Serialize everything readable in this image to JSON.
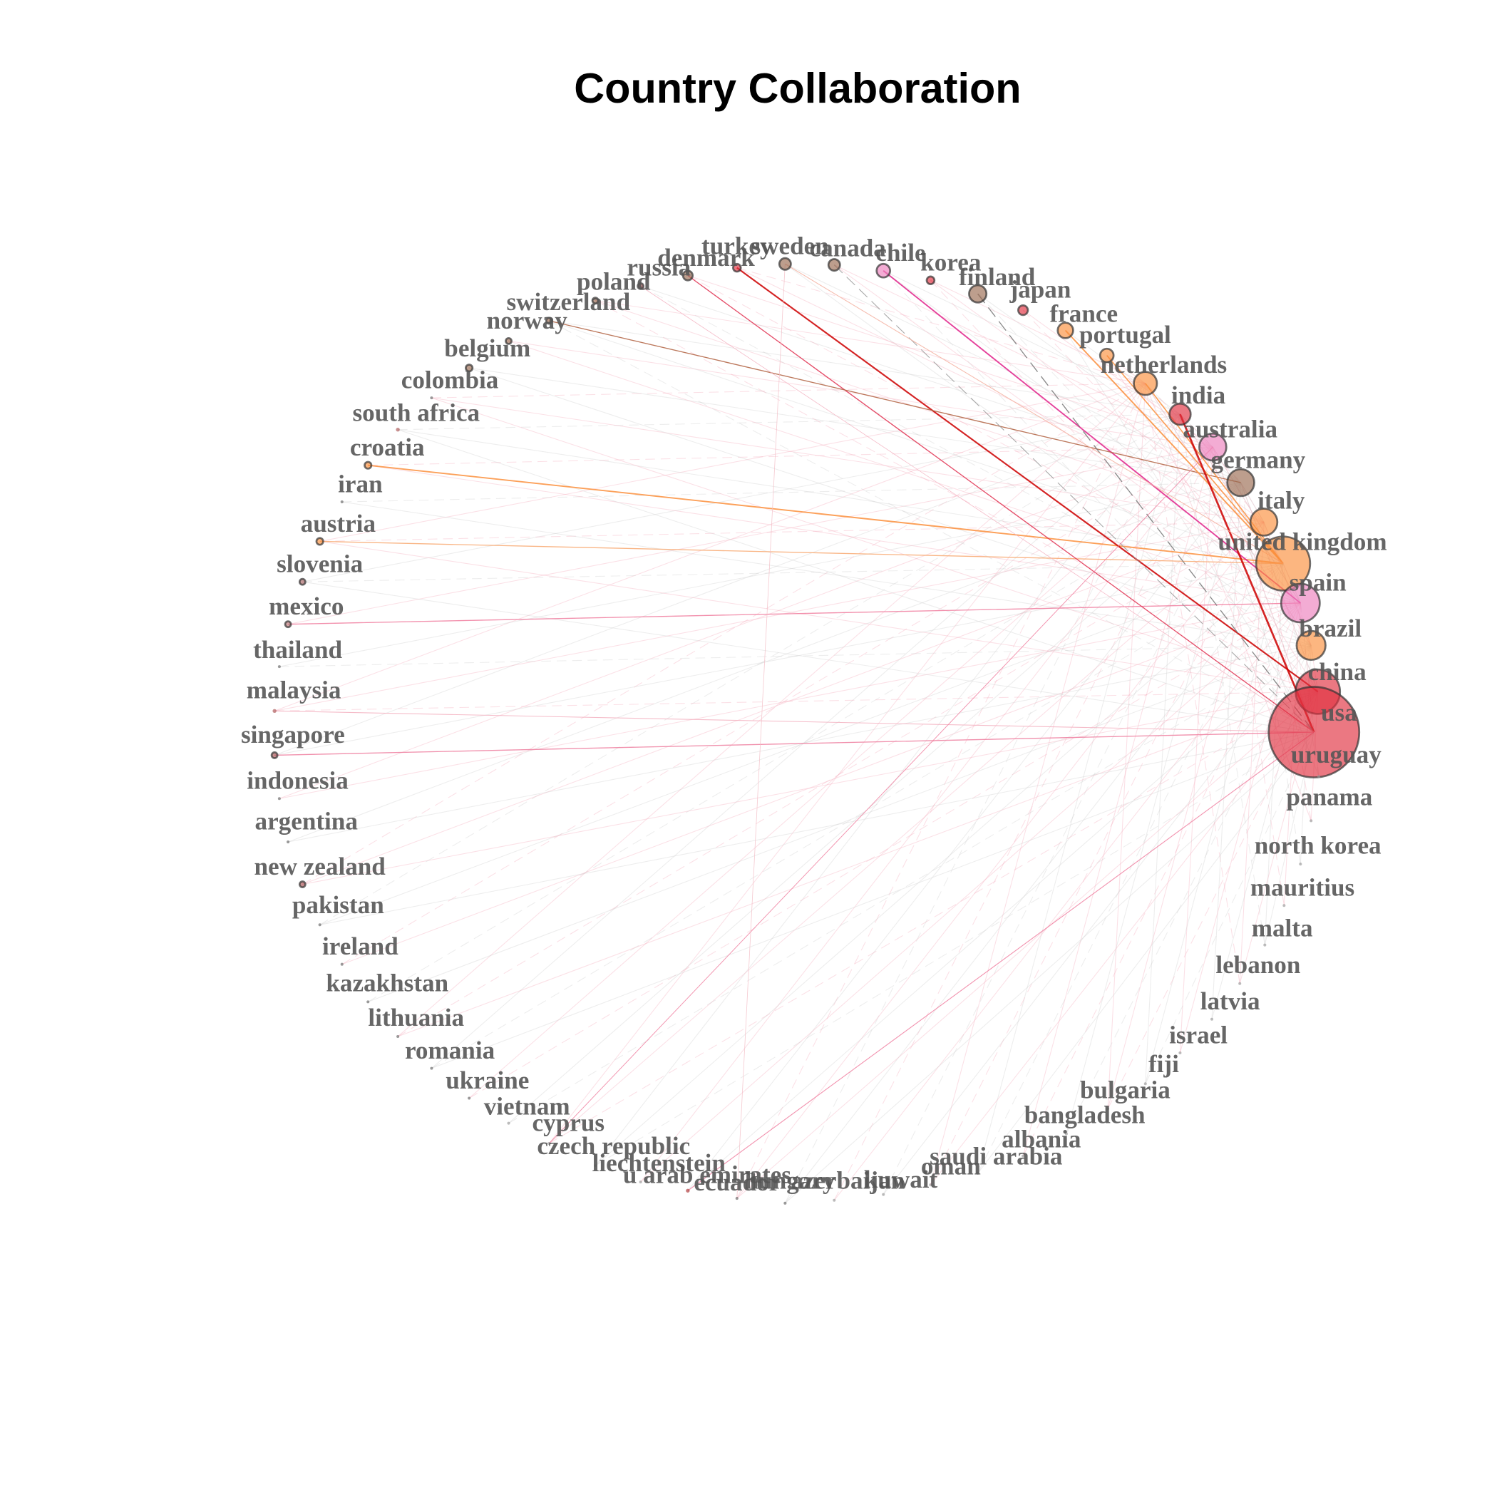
{
  "title": "Country Collaboration",
  "nodes": [
    {
      "label": "turkey"
    },
    {
      "label": "sweden"
    },
    {
      "label": "canada"
    },
    {
      "label": "chile"
    },
    {
      "label": "korea"
    },
    {
      "label": "finland"
    },
    {
      "label": "japan"
    },
    {
      "label": "france"
    },
    {
      "label": "portugal"
    },
    {
      "label": "netherlands"
    },
    {
      "label": "india"
    },
    {
      "label": "australia"
    },
    {
      "label": "germany"
    },
    {
      "label": "italy"
    },
    {
      "label": "united kingdom"
    },
    {
      "label": "spain"
    },
    {
      "label": "brazil"
    },
    {
      "label": "china"
    },
    {
      "label": "usa"
    },
    {
      "label": "uruguay"
    },
    {
      "label": "panama"
    },
    {
      "label": "north korea"
    },
    {
      "label": "mauritius"
    },
    {
      "label": "malta"
    },
    {
      "label": "lebanon"
    },
    {
      "label": "latvia"
    },
    {
      "label": "israel"
    },
    {
      "label": "fiji"
    },
    {
      "label": "bulgaria"
    },
    {
      "label": "bangladesh"
    },
    {
      "label": "albania"
    },
    {
      "label": "saudi arabia"
    },
    {
      "label": "oman"
    },
    {
      "label": "kuwait"
    },
    {
      "label": "azerbaijan"
    },
    {
      "label": "hungary"
    },
    {
      "label": "ecuador"
    },
    {
      "label": "u arab emirates"
    },
    {
      "label": "liechtenstein"
    },
    {
      "label": "czech republic"
    },
    {
      "label": "cyprus"
    },
    {
      "label": "vietnam"
    },
    {
      "label": "ukraine"
    },
    {
      "label": "romania"
    },
    {
      "label": "lithuania"
    },
    {
      "label": "kazakhstan"
    },
    {
      "label": "ireland"
    },
    {
      "label": "pakistan"
    },
    {
      "label": "new zealand"
    },
    {
      "label": "argentina"
    },
    {
      "label": "indonesia"
    },
    {
      "label": "singapore"
    },
    {
      "label": "malaysia"
    },
    {
      "label": "thailand"
    },
    {
      "label": "mexico"
    },
    {
      "label": "slovenia"
    },
    {
      "label": "austria"
    },
    {
      "label": "iran"
    },
    {
      "label": "croatia"
    },
    {
      "label": "south africa"
    },
    {
      "label": "colombia"
    },
    {
      "label": "belgium"
    },
    {
      "label": "norway"
    },
    {
      "label": "switzerland"
    },
    {
      "label": "poland"
    },
    {
      "label": "russia"
    },
    {
      "label": "denmark"
    }
  ]
}
